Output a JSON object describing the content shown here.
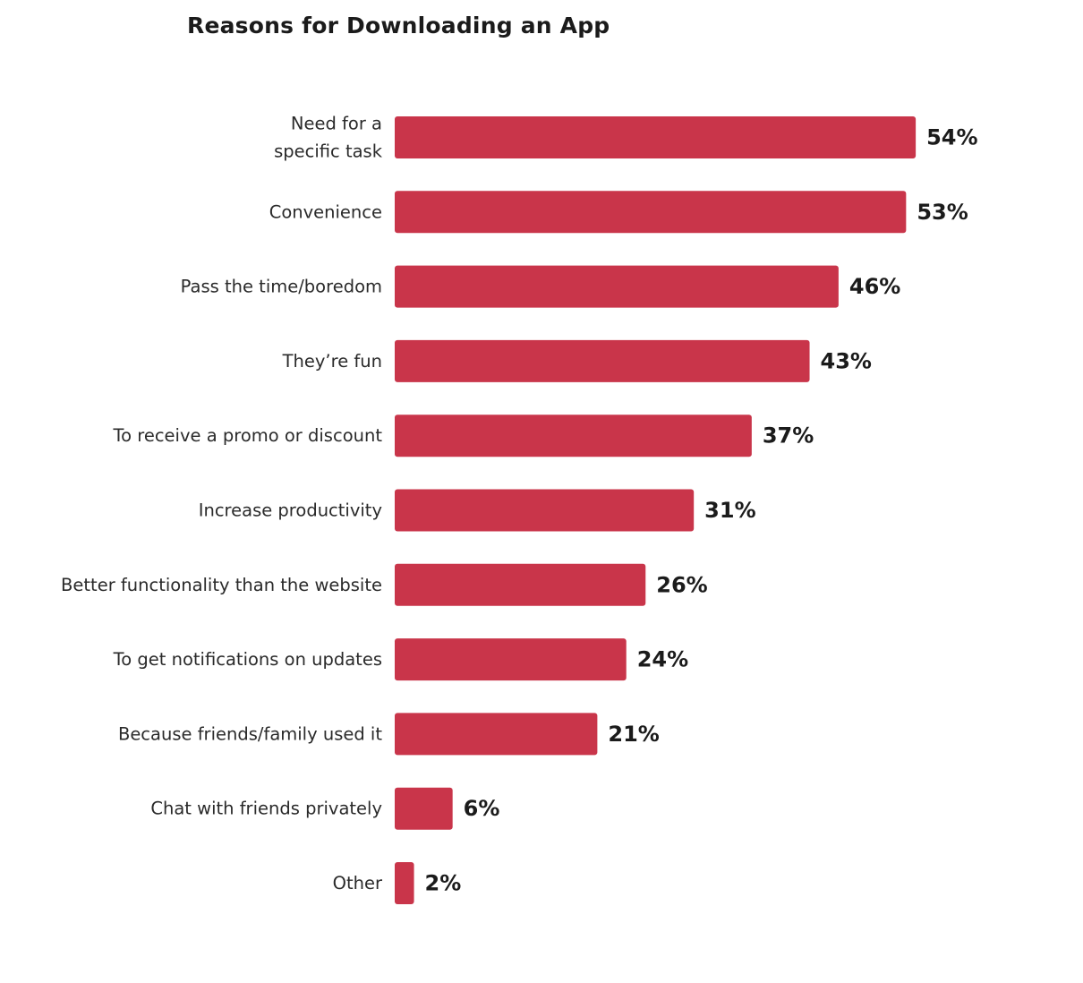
{
  "chart_data": {
    "type": "bar",
    "orientation": "horizontal",
    "title": "Reasons for Downloading an App",
    "xlabel": "",
    "ylabel": "",
    "grid": false,
    "legend": "none",
    "bar_color": "#c9354a",
    "value_suffix": "%",
    "categories": [
      [
        "Need for a",
        "specific task"
      ],
      [
        "Convenience"
      ],
      [
        "Pass the time/boredom"
      ],
      [
        "They’re fun"
      ],
      [
        "To receive a promo or discount"
      ],
      [
        "Increase productivity"
      ],
      [
        "Better functionality than the website"
      ],
      [
        "To get notifications on updates"
      ],
      [
        "Because friends/family used it"
      ],
      [
        "Chat with friends privately"
      ],
      [
        "Other"
      ]
    ],
    "values": [
      54,
      53,
      46,
      43,
      37,
      31,
      26,
      24,
      21,
      6,
      2
    ],
    "value_labels": [
      "54%",
      "53%",
      "46%",
      "43%",
      "37%",
      "31%",
      "26%",
      "24%",
      "21%",
      "6%",
      "2%"
    ]
  }
}
